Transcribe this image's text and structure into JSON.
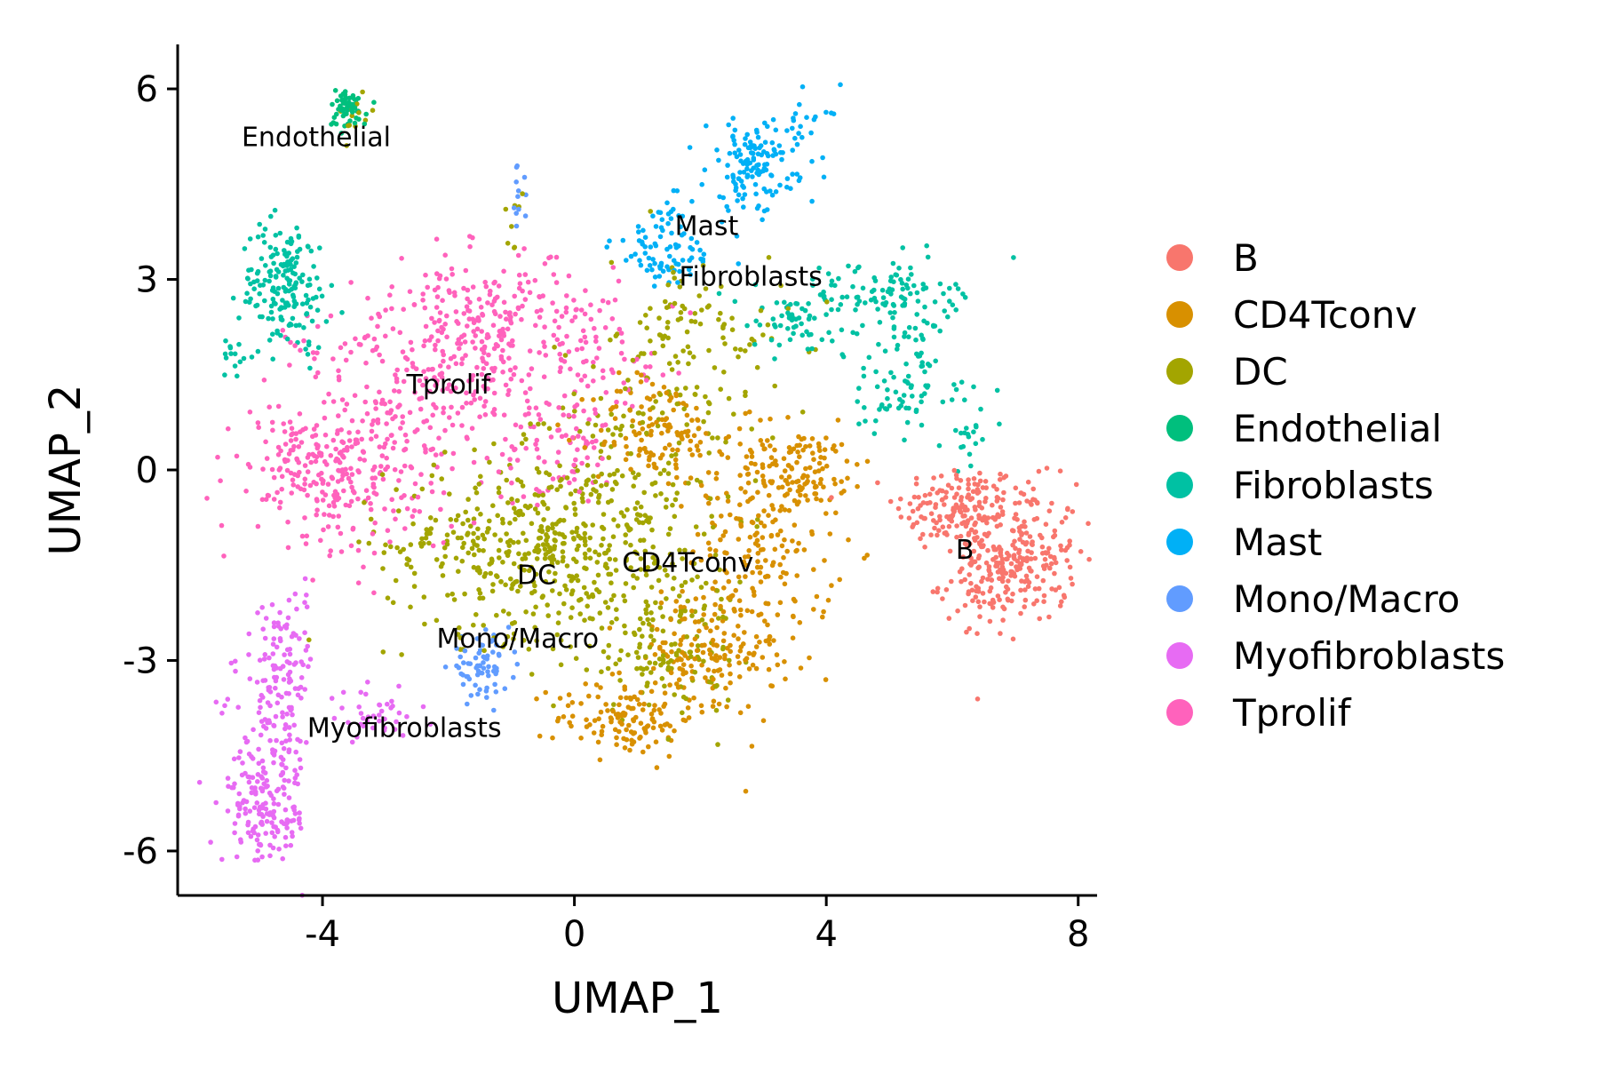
{
  "chart_data": {
    "type": "scatter",
    "title": "",
    "xlabel": "UMAP_1",
    "ylabel": "UMAP_2",
    "xlim": [
      -6.3,
      8.3
    ],
    "ylim": [
      -6.7,
      6.7
    ],
    "xticks": [
      {
        "value": -4,
        "label": "-4"
      },
      {
        "value": 0,
        "label": "0"
      },
      {
        "value": 4,
        "label": "4"
      },
      {
        "value": 8,
        "label": "8"
      }
    ],
    "yticks": [
      {
        "value": 6,
        "label": "6"
      },
      {
        "value": 3,
        "label": "3"
      },
      {
        "value": 0,
        "label": "0"
      },
      {
        "value": -3,
        "label": "-3"
      },
      {
        "value": -6,
        "label": "-6"
      }
    ],
    "grid": false,
    "legend_position": "right",
    "series": [
      {
        "name": "B",
        "color": "#F8766D",
        "label_pos": [
          6.2,
          -1.4
        ],
        "clusters": [
          [
            6.1,
            -0.6,
            0.5,
            0.35,
            160
          ],
          [
            7.1,
            -1.3,
            0.45,
            0.55,
            200
          ],
          [
            6.6,
            -1.8,
            0.4,
            0.3,
            80
          ]
        ]
      },
      {
        "name": "CD4Tconv",
        "color": "#D89000",
        "label_pos": [
          1.8,
          -1.6
        ],
        "clusters": [
          [
            3.0,
            -1.2,
            0.55,
            1.0,
            240
          ],
          [
            2.0,
            -3.0,
            0.6,
            0.45,
            140
          ],
          [
            0.8,
            -3.9,
            0.55,
            0.3,
            120
          ],
          [
            1.3,
            0.6,
            0.5,
            0.45,
            120
          ],
          [
            3.6,
            0.0,
            0.55,
            0.3,
            90
          ]
        ]
      },
      {
        "name": "DC",
        "color": "#A3A500",
        "label_pos": [
          -0.6,
          -1.8
        ],
        "clusters": [
          [
            -1.0,
            -1.2,
            1.0,
            0.7,
            350
          ],
          [
            0.6,
            -0.8,
            0.8,
            1.1,
            230
          ],
          [
            1.4,
            -2.6,
            0.6,
            0.7,
            140
          ],
          [
            2.0,
            1.6,
            0.7,
            0.9,
            120
          ],
          [
            -3.5,
            5.6,
            0.15,
            0.2,
            12
          ],
          [
            -0.9,
            4.0,
            0.1,
            0.3,
            8
          ],
          [
            1.6,
            2.6,
            0.3,
            0.25,
            20
          ]
        ]
      },
      {
        "name": "Endothelial",
        "color": "#00BF7D",
        "label_pos": [
          -4.1,
          5.1
        ],
        "clusters": [
          [
            -3.6,
            5.7,
            0.15,
            0.15,
            60
          ]
        ]
      },
      {
        "name": "Fibroblasts",
        "color": "#00C1A3",
        "label_pos": [
          2.8,
          2.9
        ],
        "clusters": [
          [
            -4.6,
            2.9,
            0.35,
            0.5,
            180
          ],
          [
            -5.4,
            1.8,
            0.1,
            0.2,
            12
          ],
          [
            4.8,
            2.8,
            0.6,
            0.25,
            90
          ],
          [
            3.6,
            2.3,
            0.6,
            0.3,
            60
          ],
          [
            5.5,
            2.2,
            0.3,
            0.35,
            40
          ],
          [
            5.2,
            1.2,
            0.5,
            0.3,
            60
          ],
          [
            6.3,
            0.5,
            0.2,
            0.3,
            20
          ]
        ]
      },
      {
        "name": "Mast",
        "color": "#00B0F6",
        "label_pos": [
          2.1,
          3.7
        ],
        "clusters": [
          [
            2.8,
            4.8,
            0.35,
            0.35,
            120
          ],
          [
            1.5,
            3.5,
            0.45,
            0.35,
            90
          ],
          [
            3.6,
            5.2,
            0.3,
            0.45,
            30
          ]
        ]
      },
      {
        "name": "Mono/Macro",
        "color": "#619CFF",
        "label_pos": [
          -0.9,
          -2.8
        ],
        "clusters": [
          [
            -1.5,
            -3.1,
            0.25,
            0.22,
            70
          ],
          [
            -0.9,
            4.4,
            0.08,
            0.2,
            12
          ]
        ]
      },
      {
        "name": "Myofibroblasts",
        "color": "#E76BF3",
        "label_pos": [
          -2.7,
          -4.2
        ],
        "clusters": [
          [
            -4.9,
            -5.5,
            0.35,
            0.35,
            120
          ],
          [
            -4.8,
            -4.4,
            0.3,
            0.6,
            110
          ],
          [
            -4.7,
            -3.1,
            0.3,
            0.45,
            70
          ],
          [
            -3.2,
            -3.9,
            0.35,
            0.2,
            40
          ],
          [
            -4.5,
            -2.3,
            0.2,
            0.3,
            20
          ]
        ]
      },
      {
        "name": "Tprolif",
        "color": "#FF62BC",
        "label_pos": [
          -2.0,
          1.2
        ],
        "clusters": [
          [
            -3.9,
            0.0,
            0.7,
            0.55,
            260
          ],
          [
            -2.0,
            1.2,
            1.2,
            0.9,
            330
          ],
          [
            -1.1,
            2.3,
            0.9,
            0.5,
            200
          ],
          [
            -0.1,
            0.3,
            0.35,
            0.4,
            40
          ],
          [
            0.6,
            1.5,
            0.4,
            0.5,
            30
          ]
        ]
      }
    ]
  }
}
